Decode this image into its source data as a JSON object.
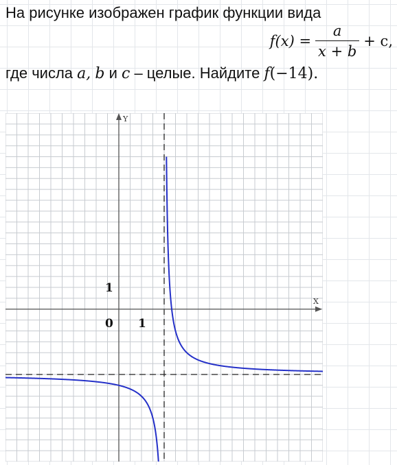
{
  "problem": {
    "intro": "На рисунке изображен график функции вида",
    "formula": {
      "lhs": "f(x) =",
      "numerator": "a",
      "denominator": "x + b",
      "rhs": "+ c,"
    },
    "condition_prefix": "где числа ",
    "var_a": "a,",
    "var_b": "b",
    "conj": " и ",
    "var_c": "c",
    "condition_mid": " – целые. Найдите ",
    "target_fn": "f",
    "target_arg": "(−14)."
  },
  "chart_data": {
    "type": "line",
    "function": "f(x) = 1/(x - 2) - 3",
    "xlim": [
      -5,
      9
    ],
    "ylim": [
      -7,
      9
    ],
    "axis_labels": {
      "x": "X",
      "y": "Y"
    },
    "tick_labels": {
      "origin": "0",
      "x_unit": "1",
      "y_unit": "1"
    },
    "asymptotes": {
      "vertical_x": 2,
      "horizontal_y": -3
    },
    "series": [
      {
        "branch": "left",
        "points": [
          [
            -5,
            -3.143
          ],
          [
            -2,
            -3.25
          ],
          [
            0,
            -3.5
          ],
          [
            1,
            -4
          ],
          [
            1.5,
            -5
          ],
          [
            1.75,
            -7
          ]
        ]
      },
      {
        "branch": "right",
        "points": [
          [
            2.1,
            7
          ],
          [
            2.25,
            1
          ],
          [
            2.5,
            -1
          ],
          [
            3,
            -2
          ],
          [
            4,
            -2.5
          ],
          [
            6,
            -2.75
          ],
          [
            9,
            -2.857
          ]
        ]
      }
    ],
    "grid": true,
    "colors": {
      "curve": "#2430c8",
      "grid": "#c7cbd0",
      "axis": "#555555",
      "asymptote": "#222222"
    }
  }
}
